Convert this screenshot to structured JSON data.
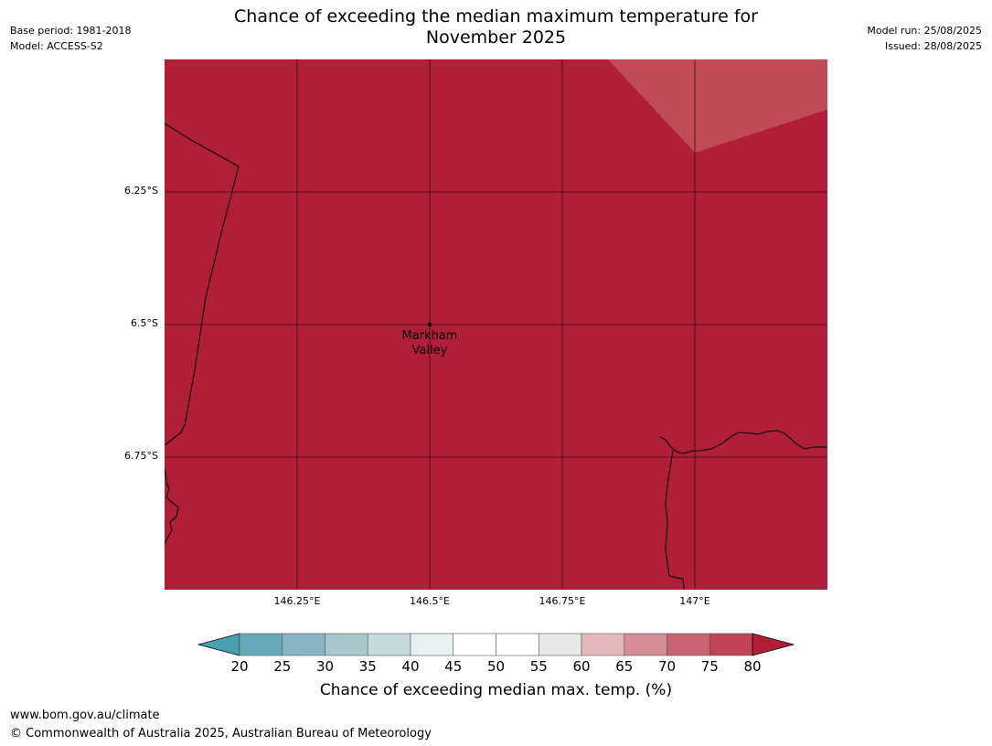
{
  "header": {
    "base_period": "Base period: 1981-2018",
    "model": "Model: ACCESS-S2",
    "title_line1": "Chance of exceeding the median maximum temperature for",
    "title_line2": "November 2025",
    "model_run": "Model run: 25/08/2025",
    "issued": "Issued: 28/08/2025"
  },
  "map": {
    "fill_color": "#b11e38",
    "light_patch_color": "#c14a57",
    "lat_labels": [
      "6.25°S",
      "6.5°S",
      "6.75°S"
    ],
    "lon_labels": [
      "146.25°E",
      "146.5°E",
      "146.75°E",
      "147°E"
    ],
    "place_name_line1": "Markham",
    "place_name_line2": "Valley",
    "place_marker_icon": "dot-marker-icon"
  },
  "colorbar": {
    "ticks": [
      "20",
      "25",
      "30",
      "35",
      "40",
      "45",
      "50",
      "55",
      "60",
      "65",
      "70",
      "75",
      "80"
    ],
    "colors": [
      "#67a9b9",
      "#87b5c3",
      "#a7c7cd",
      "#c9dadd",
      "#e9f0f1",
      "#ffffff",
      "#ffffff",
      "#e8e8e8",
      "#e3b9bd",
      "#d48c95",
      "#c96572",
      "#c04356"
    ],
    "under_color": "#4a9fb1",
    "over_color": "#b11e38",
    "label": "Chance of exceeding median max. temp. (%)"
  },
  "footer": {
    "url": "www.bom.gov.au/climate",
    "copyright": "© Commonwealth of Australia 2025, Australian Bureau of Meteorology"
  }
}
